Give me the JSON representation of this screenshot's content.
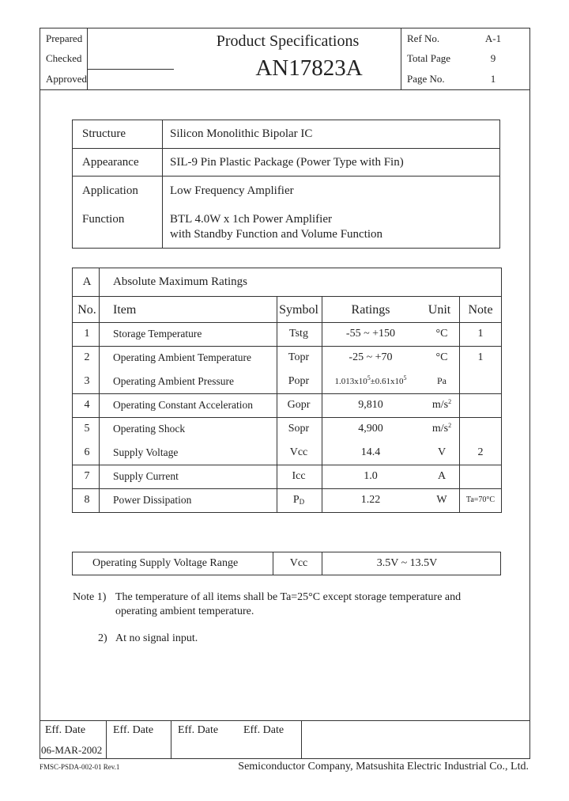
{
  "header": {
    "prepared": "Prepared",
    "checked": "Checked",
    "approved": "Approved",
    "title": "Product Specifications",
    "part_number": "AN17823A",
    "ref_no_label": "Ref No.",
    "ref_no": "A-1",
    "total_page_label": "Total Page",
    "total_page": "9",
    "page_no_label": "Page No.",
    "page_no": "1"
  },
  "overview": [
    {
      "label": "Structure",
      "value": "Silicon Monolithic Bipolar IC"
    },
    {
      "label": "Appearance",
      "value": "SIL-9 Pin Plastic Package (Power Type with Fin)"
    },
    {
      "label": "Application",
      "value": "Low Frequency Amplifier"
    },
    {
      "label": "Function",
      "value": "BTL 4.0W x 1ch Power Amplifier",
      "value2": "with Standby Function and Volume Function"
    }
  ],
  "ratings": {
    "section": "A",
    "title": "Absolute Maximum Ratings",
    "columns": {
      "no": "No.",
      "item": "Item",
      "symbol": "Symbol",
      "ratings": "Ratings",
      "unit": "Unit",
      "note": "Note"
    },
    "rows": [
      {
        "no": "1",
        "item": "Storage Temperature",
        "symbol": "Tstg",
        "rating": "-55 ~ +150",
        "unit": "°C",
        "note": "1"
      },
      {
        "no": "2",
        "item": "Operating Ambient Temperature",
        "symbol": "Topr",
        "rating": "-25 ~ +70",
        "unit": "°C",
        "note": "1"
      },
      {
        "no": "3",
        "item": "Operating Ambient Pressure",
        "symbol": "Popr",
        "rating_a": "1.013x10",
        "rating_a_sup": "5",
        "rating_b": "±0.61x10",
        "rating_b_sup": "5",
        "unit": "Pa",
        "note": ""
      },
      {
        "no": "4",
        "item": "Operating Constant Acceleration",
        "symbol": "Gopr",
        "rating": "9,810",
        "unit": "m/s",
        "unit_sup": "2",
        "note": ""
      },
      {
        "no": "5",
        "item": "Operating Shock",
        "symbol": "Sopr",
        "rating": "4,900",
        "unit": "m/s",
        "unit_sup": "2",
        "note": ""
      },
      {
        "no": "6",
        "item": "Supply Voltage",
        "symbol": "Vcc",
        "rating": "14.4",
        "unit": "V",
        "note": "2"
      },
      {
        "no": "7",
        "item": "Supply Current",
        "symbol": "Icc",
        "rating": "1.0",
        "unit": "A",
        "note": ""
      },
      {
        "no": "8",
        "item": "Power Dissipation",
        "symbol": "P",
        "symbol_sub": "D",
        "rating": "1.22",
        "unit": "W",
        "note": "Ta=70°C"
      }
    ]
  },
  "operating_range": {
    "label": "Operating Supply Voltage Range",
    "symbol": "Vcc",
    "value": "3.5V ~ 13.5V"
  },
  "notes": {
    "n1_label": "Note 1)",
    "n1_line1": "The temperature of all items shall be Ta=25°C except storage temperature and",
    "n1_line2": "operating ambient temperature.",
    "n2_label": "2)",
    "n2": "At no signal input."
  },
  "footer": {
    "eff_dates": [
      "Eff. Date",
      "Eff. Date",
      "Eff. Date",
      "Eff. Date"
    ],
    "date": "06-MAR-2002",
    "form_no": "FMSC-PSDA-002-01 Rev.1",
    "company": "Semiconductor Company, Matsushita Electric Industrial Co., Ltd."
  }
}
